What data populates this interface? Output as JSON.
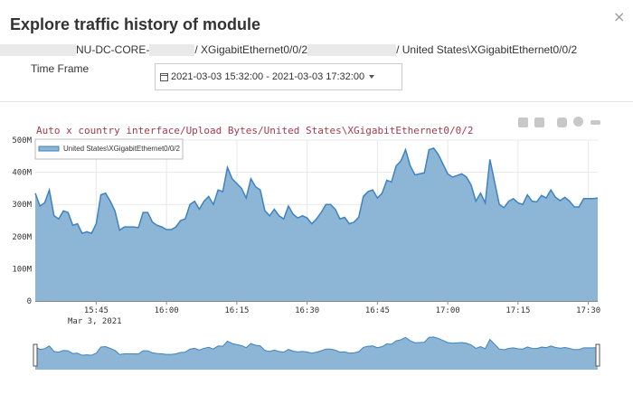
{
  "modal": {
    "title": "Explore traffic history of module",
    "close_label": "×"
  },
  "path": {
    "part1": "NU-DC-CORE-",
    "part2": " / XGigabitEthernet0/0/2",
    "part3": " / United States\\XGigabitEthernet0/0/2"
  },
  "timeframe": {
    "label": "Time Frame",
    "value": "2021-03-03 15:32:00 - 2021-03-03 17:32:00"
  },
  "toolbar": {
    "icons": [
      "zoom-in-icon",
      "zoom-out-icon",
      "camera-icon",
      "comment-icon",
      "minimize-icon"
    ]
  },
  "colors": {
    "area_fill": "#8cb5d6",
    "area_line": "#3e83c0",
    "title": "#a23c4a",
    "grid": "#e8e8e8"
  },
  "chart_data": {
    "type": "area",
    "title": "Auto x country interface/Upload Bytes/United States\\XGigabitEthernet0/0/2",
    "x_date_label": "Mar 3, 2021",
    "x_ticks": [
      "15:45",
      "16:00",
      "16:15",
      "16:30",
      "16:45",
      "17:00",
      "17:15",
      "17:30"
    ],
    "y_ticks": [
      "0",
      "100M",
      "200M",
      "300M",
      "400M",
      "500M"
    ],
    "ylim": [
      0,
      500
    ],
    "xlim": [
      "15:32",
      "17:32"
    ],
    "grid": true,
    "legend_position": "top-left",
    "series": [
      {
        "name": "United States\\XGigabitEthernet0/0/2",
        "x_minutes": [
          0,
          1,
          2,
          3,
          4,
          5,
          6,
          7,
          8,
          9,
          10,
          11,
          12,
          13,
          14,
          15,
          16,
          17,
          18,
          19,
          20,
          21,
          22,
          23,
          24,
          25,
          26,
          27,
          28,
          29,
          30,
          31,
          32,
          33,
          34,
          35,
          36,
          37,
          38,
          39,
          40,
          41,
          42,
          43,
          44,
          45,
          46,
          47,
          48,
          49,
          50,
          51,
          52,
          53,
          54,
          55,
          56,
          57,
          58,
          59,
          60,
          61,
          62,
          63,
          64,
          65,
          66,
          67,
          68,
          69,
          70,
          71,
          72,
          73,
          74,
          75,
          76,
          77,
          78,
          79,
          80,
          81,
          82,
          83,
          84,
          85,
          86,
          87,
          88,
          89,
          90,
          91,
          92,
          93,
          94,
          95,
          96,
          97,
          98,
          99,
          100,
          101,
          102,
          103,
          104,
          105,
          106,
          107,
          108,
          109,
          110,
          111,
          112,
          113,
          114,
          115,
          116,
          117,
          118,
          119,
          120
        ],
        "values": [
          335,
          295,
          305,
          345,
          265,
          255,
          280,
          275,
          235,
          240,
          210,
          215,
          210,
          240,
          330,
          335,
          310,
          280,
          220,
          230,
          230,
          230,
          228,
          275,
          275,
          245,
          235,
          230,
          222,
          222,
          230,
          250,
          255,
          300,
          310,
          285,
          310,
          325,
          300,
          345,
          340,
          415,
          380,
          365,
          350,
          320,
          380,
          355,
          345,
          280,
          265,
          285,
          265,
          255,
          295,
          270,
          258,
          265,
          258,
          240,
          255,
          275,
          300,
          300,
          285,
          255,
          260,
          240,
          245,
          260,
          325,
          340,
          345,
          320,
          335,
          375,
          370,
          420,
          435,
          470,
          420,
          392,
          395,
          398,
          470,
          475,
          455,
          425,
          395,
          385,
          390,
          395,
          385,
          360,
          310,
          335,
          305,
          440,
          370,
          300,
          290,
          310,
          318,
          305,
          300,
          330,
          310,
          308,
          328,
          320,
          345,
          322,
          312,
          322,
          310,
          292,
          292,
          318,
          318,
          318,
          320
        ]
      }
    ],
    "navigator": true
  }
}
